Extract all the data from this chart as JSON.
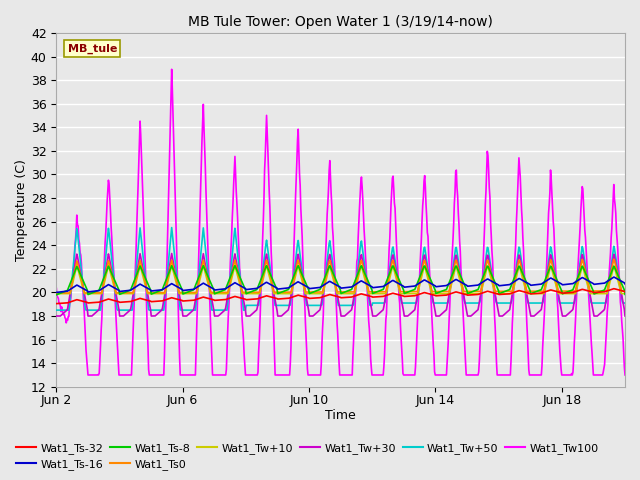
{
  "title": "MB Tule Tower: Open Water 1 (3/19/14-now)",
  "xlabel": "Time",
  "ylabel": "Temperature (C)",
  "xlim": [
    0,
    18
  ],
  "ylim": [
    12,
    42
  ],
  "yticks": [
    12,
    14,
    16,
    18,
    20,
    22,
    24,
    26,
    28,
    30,
    32,
    34,
    36,
    38,
    40,
    42
  ],
  "xtick_labels": [
    "Jun 2",
    "Jun 6",
    "Jun 10",
    "Jun 14",
    "Jun 18"
  ],
  "xtick_positions": [
    0,
    4,
    8,
    12,
    16
  ],
  "fig_bg": "#e8e8e8",
  "plot_bg": "#e8e8e8",
  "series": {
    "Wat1_Ts-32": {
      "color": "#ff0000",
      "lw": 1.2
    },
    "Wat1_Ts-16": {
      "color": "#0000cc",
      "lw": 1.2
    },
    "Wat1_Ts-8": {
      "color": "#00cc00",
      "lw": 1.2
    },
    "Wat1_Ts0": {
      "color": "#ff8800",
      "lw": 1.2
    },
    "Wat1_Tw+10": {
      "color": "#cccc00",
      "lw": 1.2
    },
    "Wat1_Tw+30": {
      "color": "#cc00cc",
      "lw": 1.2
    },
    "Wat1_Tw+50": {
      "color": "#00cccc",
      "lw": 1.2
    },
    "Wat1_Tw100": {
      "color": "#ff00ff",
      "lw": 1.2
    }
  },
  "legend_label": "MB_tule",
  "legend_box_color": "#ffffcc",
  "legend_text_color": "#8b0000",
  "legend_border_color": "#999900"
}
